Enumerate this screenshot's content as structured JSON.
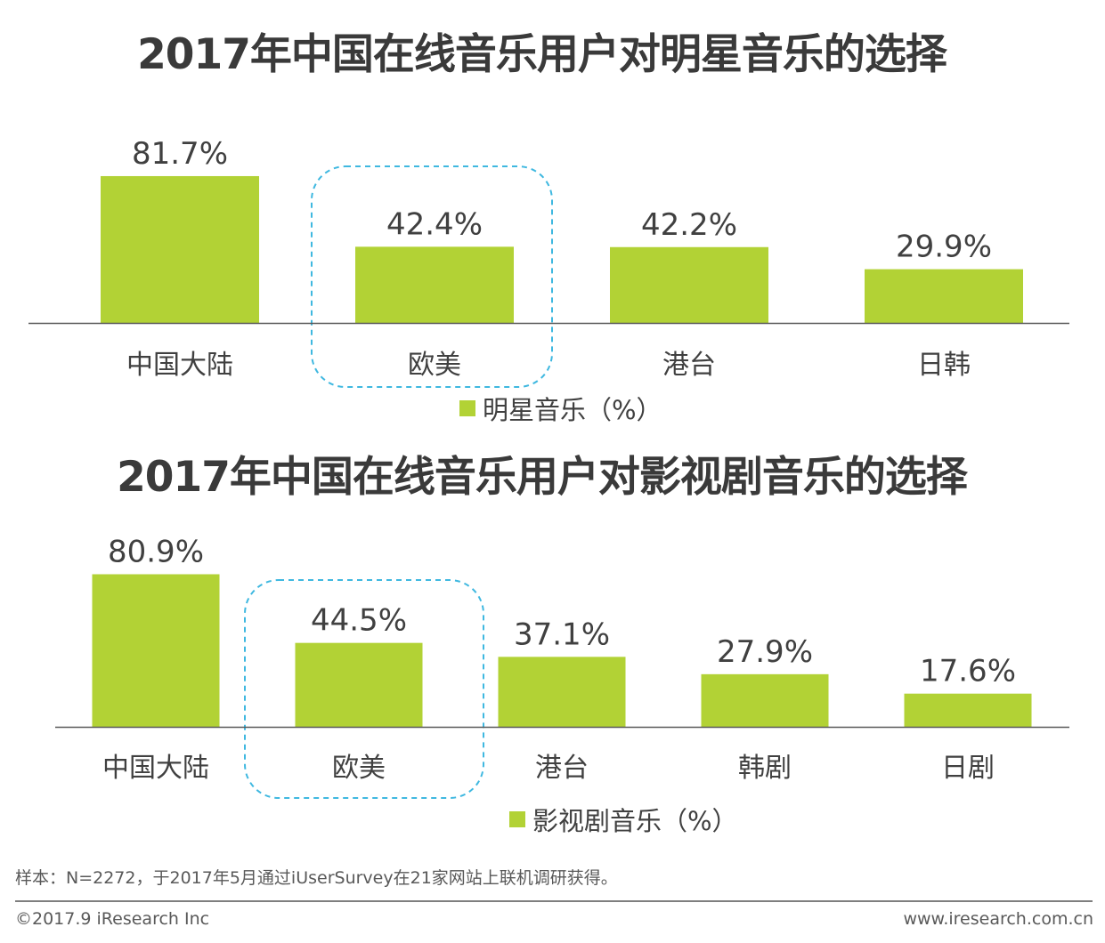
{
  "colors": {
    "bar": "#b2d235",
    "axis": "#595959",
    "highlight": "#3fb8e0",
    "text": "#404040"
  },
  "chart_data": [
    {
      "type": "bar",
      "title": "2017年中国在线音乐用户对明星音乐的选择",
      "categories": [
        "中国大陆",
        "欧美",
        "港台",
        "日韩"
      ],
      "series": [
        {
          "name": "明星音乐（%）",
          "values": [
            81.7,
            42.4,
            42.2,
            29.9
          ]
        }
      ],
      "value_labels": [
        "81.7%",
        "42.4%",
        "42.2%",
        "29.9%"
      ],
      "ylim": [
        0,
        100
      ],
      "highlight_category": "欧美",
      "legend": "明星音乐（%）",
      "legend_position": "bottom"
    },
    {
      "type": "bar",
      "title": "2017年中国在线音乐用户对影视剧音乐的选择",
      "categories": [
        "中国大陆",
        "欧美",
        "港台",
        "韩剧",
        "日剧"
      ],
      "series": [
        {
          "name": "影视剧音乐（%）",
          "values": [
            80.9,
            44.5,
            37.1,
            27.9,
            17.6
          ]
        }
      ],
      "value_labels": [
        "80.9%",
        "44.5%",
        "37.1%",
        "27.9%",
        "17.6%"
      ],
      "ylim": [
        0,
        100
      ],
      "highlight_category": "欧美",
      "legend": "影视剧音乐（%）",
      "legend_position": "bottom"
    }
  ],
  "footer": {
    "note": "样本：N=2272，于2017年5月通过iUserSurvey在21家网站上联机调研获得。",
    "copyright": "©2017.9 iResearch Inc",
    "website": "www.iresearch.com.cn"
  }
}
